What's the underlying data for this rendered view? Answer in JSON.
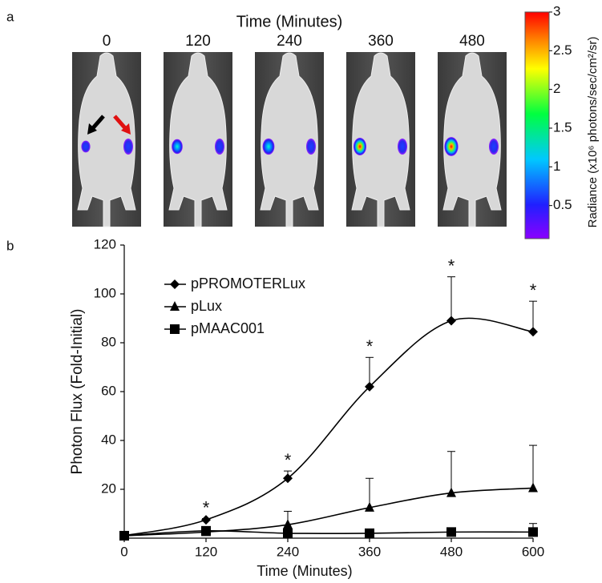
{
  "panel_a": {
    "label": "a",
    "title": "Time (Minutes)",
    "frames": [
      "0",
      "120",
      "240",
      "360",
      "480"
    ],
    "colorbar": {
      "label": "Radiance (x10⁶ photons/sec/cm²/sr)",
      "clim": [
        0,
        3
      ],
      "ticks": [
        0.5,
        1,
        1.5,
        2,
        2.5,
        3
      ]
    }
  },
  "chart_data": {
    "type": "line",
    "panel_label": "b",
    "xlabel": "Time (Minutes)",
    "ylabel": "Photon Flux (Fold-Initial)",
    "x": [
      0,
      120,
      240,
      360,
      480,
      600
    ],
    "xlim": [
      0,
      600
    ],
    "xticks": [
      0,
      120,
      240,
      360,
      480,
      600
    ],
    "ylim": [
      0,
      120
    ],
    "yticks": [
      20,
      40,
      60,
      80,
      100,
      120
    ],
    "significance": [
      null,
      "*",
      "*",
      "*",
      "*",
      "*"
    ],
    "series": [
      {
        "name": "pPROMOTERLux",
        "color": "#000000",
        "marker": "diamond",
        "values": [
          1,
          7.5,
          24.5,
          62,
          89,
          84.5
        ],
        "errors": [
          0,
          0.5,
          3,
          12,
          18,
          12.5
        ]
      },
      {
        "name": "pLux",
        "color": "#000000",
        "marker": "triangle",
        "values": [
          1,
          2.5,
          5.5,
          12.5,
          18.5,
          20.5
        ],
        "errors": [
          0,
          0.5,
          5.5,
          12,
          17,
          17.5
        ]
      },
      {
        "name": "pMAAC001",
        "color": "#000000",
        "marker": "square",
        "values": [
          1,
          3,
          2,
          2,
          2.5,
          2.5
        ],
        "errors": [
          0,
          0.5,
          0.5,
          0.5,
          0.5,
          3.5
        ]
      }
    ]
  }
}
